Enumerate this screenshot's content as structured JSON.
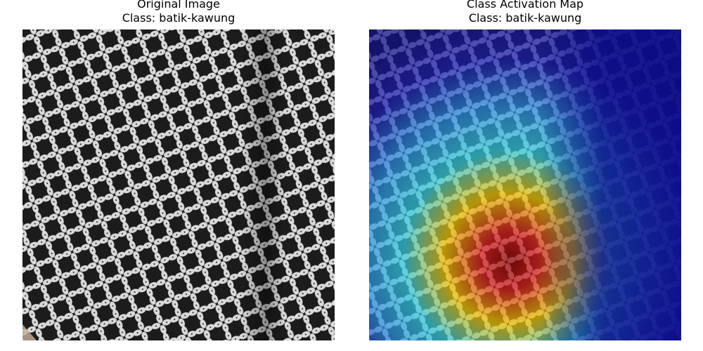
{
  "panels": [
    {
      "title_line1": "Original Image",
      "title_line2": "Class: batik-kawung",
      "image": "batik-kawung-fabric-photo"
    },
    {
      "title_line1": "Class Activation Map",
      "title_line2": "Class: batik-kawung",
      "image": "class-activation-heatmap-overlay"
    }
  ],
  "colors": {
    "pattern_dark": "#1c1c1c",
    "pattern_light": "#d9d9d9",
    "heat_low": "#1b1bb0",
    "heat_mid": "#33ccdd",
    "heat_high": "#c01010"
  }
}
